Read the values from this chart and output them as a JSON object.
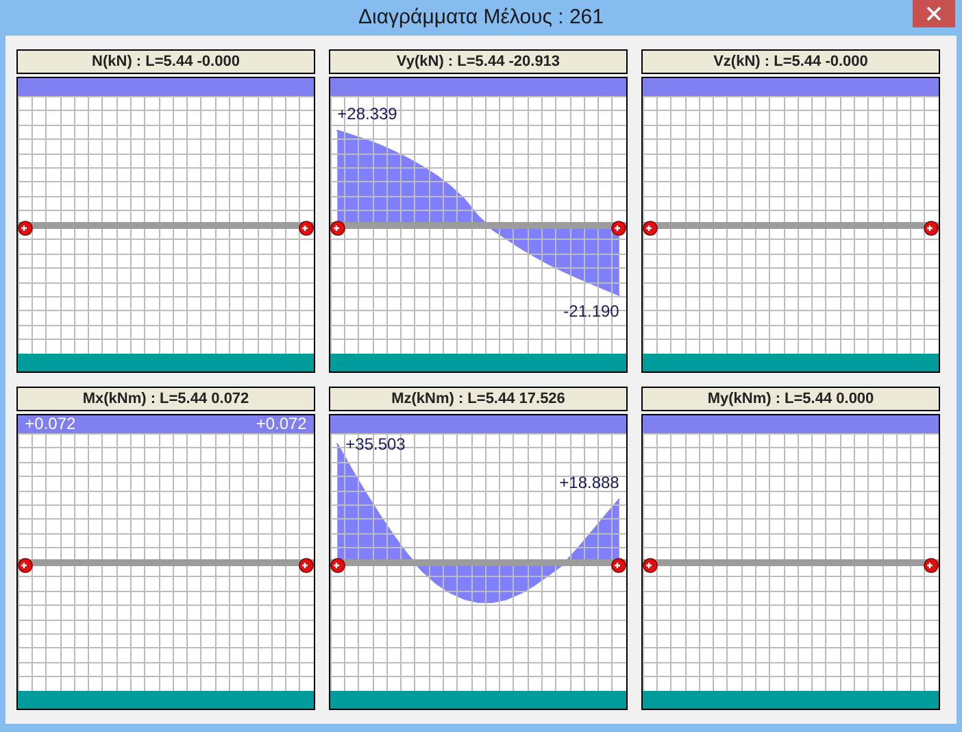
{
  "chart_data": [
    {
      "type": "other",
      "title": "Διαγράμματα Μέλους : 261"
    },
    {
      "type": "other",
      "title": "N(kN) : L=5.44 -0.000"
    },
    {
      "type": "area",
      "title": "Vy(kN) : L=5.44 -20.913",
      "categories": [
        null,
        null,
        null,
        null,
        null,
        null,
        null,
        null,
        null,
        null,
        null,
        null,
        null,
        null,
        null,
        null,
        null,
        null,
        null,
        null,
        null
      ],
      "values": [
        28.339,
        27.0,
        25.6,
        24.0,
        22.1,
        20.0,
        17.6,
        14.9,
        11.7,
        7.8,
        2.6,
        -1.4,
        -4.2,
        -7.0,
        -9.5,
        -11.8,
        -13.9,
        -15.8,
        -17.6,
        -19.4,
        -21.19
      ],
      "value_labels": [
        "+28.339",
        null,
        null,
        null,
        null,
        null,
        null,
        null,
        null,
        null,
        null,
        null,
        null,
        null,
        null,
        null,
        null,
        null,
        null,
        null,
        "-21.190"
      ],
      "color": "#8080ff",
      "tick_labels": false,
      "grid": true
    },
    {
      "type": "other",
      "title": "Vz(kN) : L=5.44 -0.000"
    },
    {
      "type": "other",
      "title": "Mx(kNm) : L=5.44 0.072",
      "annotations": [
        "+0.072",
        "+0.072"
      ]
    },
    {
      "type": "area",
      "title": "Mz(kNm) : L=5.44 17.526",
      "categories": [
        null,
        null,
        null,
        null,
        null,
        null,
        null,
        null,
        null,
        null,
        null,
        null,
        null,
        null,
        null,
        null,
        null,
        null,
        null,
        null,
        null
      ],
      "values": [
        35.503,
        28.0,
        20.9,
        14.2,
        7.9,
        2.2,
        -2.6,
        -6.4,
        -9.2,
        -11.1,
        -12.1,
        -12.1,
        -11.2,
        -9.4,
        -6.9,
        -3.9,
        -0.8,
        3.8,
        8.8,
        13.9,
        18.888
      ],
      "value_labels": [
        "+35.503",
        null,
        null,
        null,
        null,
        null,
        null,
        null,
        null,
        null,
        null,
        null,
        null,
        null,
        null,
        null,
        null,
        null,
        null,
        null,
        "+18.888"
      ],
      "color": "#8080ff",
      "tick_labels": false,
      "grid": true
    },
    {
      "type": "other",
      "title": "My(kNm) : L=5.44 0.000"
    }
  ]
}
